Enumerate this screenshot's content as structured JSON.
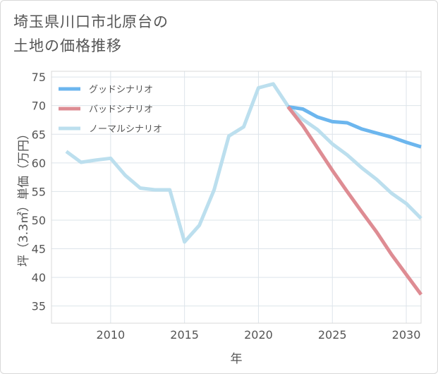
{
  "title_lines": [
    "埼玉県川口市北原台の",
    "土地の価格推移"
  ],
  "chart_data": {
    "type": "line",
    "xlabel": "年",
    "ylabel": "坪（3.3㎡）単価（万円）",
    "xlim": [
      2006,
      2031
    ],
    "ylim": [
      32,
      76
    ],
    "x_ticks": [
      2010,
      2015,
      2020,
      2025,
      2030
    ],
    "y_ticks": [
      35,
      40,
      45,
      50,
      55,
      60,
      65,
      70,
      75
    ],
    "grid": true,
    "legend_position": "top-left",
    "series": [
      {
        "name": "グッドシナリオ",
        "color": "#6cb6ee",
        "x": [
          2022,
          2023,
          2024,
          2025,
          2026,
          2027,
          2028,
          2029,
          2030,
          2031
        ],
        "values": [
          69.8,
          69.4,
          68.0,
          67.2,
          67.0,
          65.9,
          65.2,
          64.5,
          63.6,
          62.8
        ]
      },
      {
        "name": "バッドシナリオ",
        "color": "#de8c93",
        "x": [
          2022,
          2023,
          2024,
          2025,
          2026,
          2027,
          2028,
          2029,
          2030,
          2031
        ],
        "values": [
          69.8,
          66.5,
          62.6,
          58.7,
          55.0,
          51.4,
          47.9,
          44.0,
          40.5,
          37.0
        ]
      },
      {
        "name": "ノーマルシナリオ",
        "color": "#bcdfee",
        "x": [
          2007,
          2008,
          2009,
          2010,
          2011,
          2012,
          2013,
          2014,
          2015,
          2016,
          2017,
          2018,
          2019,
          2020,
          2021,
          2022,
          2023,
          2024,
          2025,
          2026,
          2027,
          2028,
          2029,
          2030,
          2031
        ],
        "values": [
          62.0,
          60.1,
          60.5,
          60.8,
          57.8,
          55.6,
          55.3,
          55.3,
          46.2,
          49.1,
          55.3,
          64.7,
          66.3,
          73.1,
          73.8,
          69.9,
          67.6,
          65.8,
          63.3,
          61.4,
          59.1,
          57.1,
          54.7,
          52.9,
          50.3
        ]
      }
    ]
  }
}
